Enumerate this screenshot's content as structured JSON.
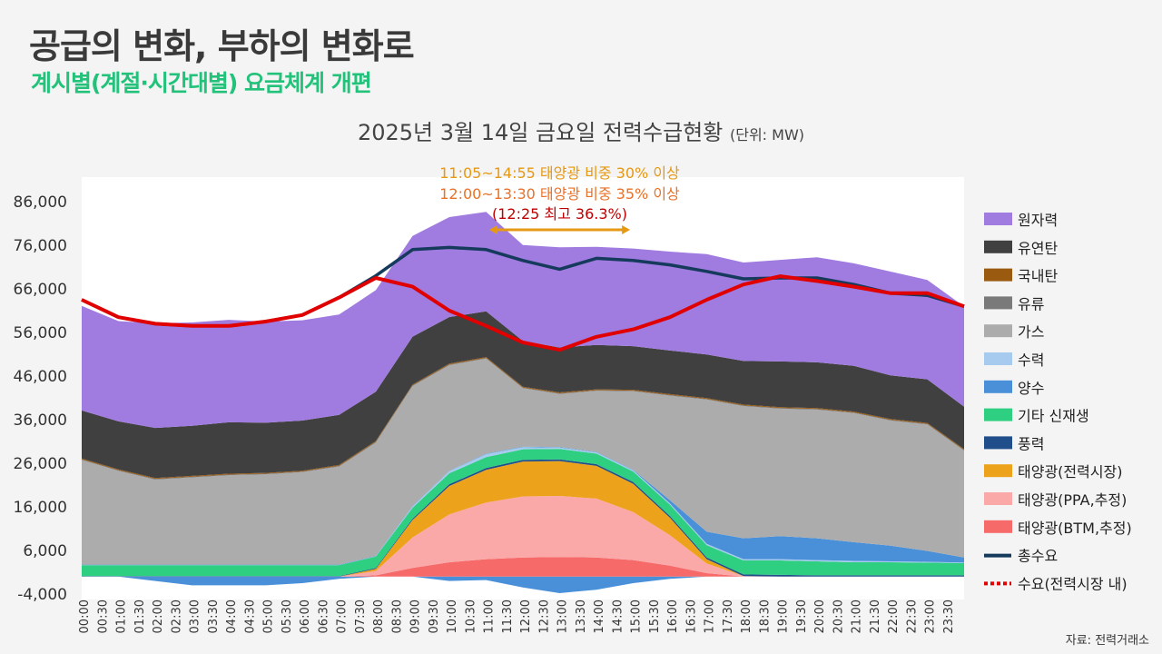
{
  "header": {
    "title": "공급의 변화, 부하의 변화로",
    "subtitle": "계시별(계절·시간대별) 요금체계 개편",
    "chart_title": "2025년 3월 14일 금요일 전력수급현황",
    "chart_unit": "(단위: MW)",
    "source": "자료: 전력거래소"
  },
  "annotations": {
    "line1": "11:05~14:55  태양광 비중 30% 이상",
    "line2": "12:00~13:30  태양광 비중 35% 이상",
    "line3": "(12:25 최고 36.3%)",
    "arrow_from": "11:05",
    "arrow_to": "14:55"
  },
  "colors": {
    "nuclear": "#a07be0",
    "coal": "#404040",
    "anthracite": "#9a5a10",
    "oil": "#7a7a7a",
    "lng": "#acacac",
    "hydro": "#a6cbee",
    "pumped": "#4a90d9",
    "other_renew": "#2ecf80",
    "wind": "#1f4e8a",
    "solar_market": "#eda21c",
    "solar_ppa": "#fba8a8",
    "solar_btm": "#f66a6a",
    "total_demand": "#153a5c",
    "market_demand": "#e00000",
    "annotation1": "#e69914",
    "annotation2": "#e8722a",
    "annotation3": "#c00000"
  },
  "chart_data": {
    "type": "area",
    "title": "2025년 3월 14일 금요일 전력수급현황",
    "unit": "MW",
    "ylim": [
      -4000,
      86000
    ],
    "yticks": [
      86000,
      76000,
      66000,
      56000,
      46000,
      36000,
      26000,
      16000,
      6000,
      -4000
    ],
    "ytick_labels": [
      "86,000",
      "76,000",
      "66,000",
      "56,000",
      "46,000",
      "36,000",
      "26,000",
      "16,000",
      "6,000",
      "-4,000"
    ],
    "xticks": [
      "00:00",
      "00:30",
      "01:00",
      "01:30",
      "02:00",
      "02:30",
      "03:00",
      "03:30",
      "04:00",
      "04:30",
      "05:00",
      "05:30",
      "06:00",
      "06:30",
      "07:00",
      "07:30",
      "08:00",
      "08:30",
      "09:00",
      "09:30",
      "10:00",
      "10:30",
      "11:00",
      "11:30",
      "12:00",
      "12:30",
      "13:00",
      "13:30",
      "14:00",
      "14:30",
      "15:00",
      "15:30",
      "16:00",
      "16:30",
      "17:00",
      "17:30",
      "18:00",
      "18:30",
      "19:00",
      "19:30",
      "20:00",
      "20:30",
      "21:00",
      "21:30",
      "22:00",
      "22:30",
      "23:00",
      "23:30"
    ],
    "x_hours": [
      0,
      1,
      2,
      3,
      4,
      5,
      6,
      7,
      8,
      9,
      10,
      11,
      12,
      13,
      14,
      15,
      16,
      17,
      18,
      19,
      20,
      21,
      22,
      23,
      24
    ],
    "stacked_series": [
      {
        "key": "pumped",
        "name": "양수",
        "values": [
          0,
          0,
          -1000,
          -2000,
          -2000,
          -2000,
          -1500,
          -500,
          0,
          0,
          -1000,
          -800,
          -2500,
          -3800,
          -3000,
          -1500,
          -500,
          0,
          0,
          0,
          0,
          0,
          0,
          0,
          0
        ]
      },
      {
        "key": "solar_btm",
        "name": "태양광(BTM,추정)",
        "values": [
          0,
          0,
          0,
          0,
          0,
          0,
          0,
          0,
          300,
          2000,
          3300,
          4000,
          4400,
          4500,
          4400,
          3800,
          2500,
          800,
          0,
          0,
          0,
          0,
          0,
          0,
          0
        ]
      },
      {
        "key": "solar_ppa",
        "name": "태양광(PPA,추정)",
        "values": [
          0,
          0,
          0,
          0,
          0,
          0,
          0,
          0,
          1000,
          7000,
          11000,
          13000,
          14000,
          14000,
          13500,
          11000,
          7000,
          2200,
          100,
          0,
          0,
          0,
          0,
          0,
          0
        ]
      },
      {
        "key": "solar_market",
        "name": "태양광(전력시장)",
        "values": [
          0,
          0,
          0,
          0,
          0,
          0,
          0,
          0,
          500,
          4000,
          6500,
          7500,
          8000,
          8000,
          7500,
          6500,
          4000,
          1000,
          0,
          0,
          0,
          0,
          0,
          0,
          0
        ]
      },
      {
        "key": "wind",
        "name": "풍력",
        "values": [
          100,
          100,
          100,
          100,
          100,
          100,
          100,
          100,
          200,
          300,
          400,
          400,
          400,
          400,
          400,
          400,
          400,
          400,
          400,
          400,
          300,
          300,
          300,
          300,
          300
        ]
      },
      {
        "key": "other_renew",
        "name": "기타 신재생",
        "values": [
          2500,
          2500,
          2500,
          2500,
          2500,
          2500,
          2500,
          2500,
          2600,
          2500,
          2500,
          2500,
          2400,
          2400,
          2400,
          2400,
          2600,
          2800,
          3200,
          3300,
          3200,
          3000,
          3000,
          2900,
          2800
        ]
      },
      {
        "key": "hydro",
        "name": "수력",
        "values": [
          50,
          50,
          50,
          50,
          50,
          50,
          50,
          50,
          50,
          300,
          500,
          700,
          500,
          300,
          300,
          300,
          300,
          300,
          300,
          300,
          300,
          300,
          200,
          200,
          100
        ]
      },
      {
        "key": "pumped_gen",
        "name": "양수",
        "values": [
          100,
          100,
          100,
          100,
          100,
          100,
          100,
          100,
          100,
          100,
          100,
          100,
          100,
          100,
          100,
          100,
          700,
          2800,
          4800,
          5300,
          5000,
          4300,
          3600,
          2500,
          1200
        ]
      },
      {
        "key": "lng",
        "name": "가스",
        "values": [
          24000,
          21500,
          19500,
          20000,
          20500,
          20700,
          21200,
          22500,
          26000,
          27500,
          24200,
          21800,
          13400,
          12200,
          14000,
          18000,
          24000,
          30300,
          30300,
          29200,
          29500,
          29600,
          28700,
          29000,
          24500
        ]
      },
      {
        "key": "oil",
        "name": "유류",
        "values": [
          150,
          150,
          150,
          150,
          150,
          150,
          150,
          150,
          150,
          150,
          150,
          150,
          150,
          150,
          150,
          150,
          150,
          150,
          150,
          150,
          150,
          150,
          150,
          150,
          150
        ]
      },
      {
        "key": "anthracite",
        "name": "국내탄",
        "values": [
          200,
          200,
          200,
          200,
          200,
          200,
          200,
          200,
          200,
          200,
          200,
          200,
          200,
          200,
          200,
          200,
          200,
          200,
          200,
          200,
          200,
          200,
          200,
          200,
          200
        ]
      },
      {
        "key": "coal",
        "name": "유연탄",
        "values": [
          11000,
          11000,
          11500,
          11500,
          11800,
          11500,
          11500,
          11500,
          11300,
          11000,
          10700,
          10500,
          10500,
          10300,
          10200,
          10000,
          10000,
          10000,
          10000,
          10500,
          10500,
          10500,
          10000,
          10000,
          9700
        ]
      },
      {
        "key": "nuclear",
        "name": "원자력",
        "values": [
          24000,
          23000,
          24000,
          23700,
          23500,
          23200,
          23000,
          23000,
          23300,
          23100,
          22900,
          22800,
          22000,
          23000,
          22500,
          22400,
          22700,
          23000,
          22600,
          23300,
          24100,
          23500,
          23800,
          22800,
          23000
        ]
      }
    ],
    "lines": [
      {
        "key": "total_demand",
        "name": "총수요",
        "values": [
          63500,
          59500,
          58000,
          57500,
          57500,
          58500,
          60000,
          64000,
          69000,
          75000,
          75500,
          75000,
          72500,
          70500,
          73000,
          72500,
          71500,
          70000,
          68300,
          68500,
          68500,
          67000,
          65000,
          64500,
          62000
        ]
      },
      {
        "key": "market_demand",
        "name": "수요(전력시장 내)",
        "values": [
          63500,
          59500,
          58000,
          57500,
          57500,
          58500,
          60000,
          64000,
          68500,
          66500,
          61000,
          57500,
          53700,
          52000,
          55000,
          56700,
          59500,
          63500,
          67000,
          68900,
          67800,
          66500,
          65000,
          65000,
          62000
        ]
      }
    ],
    "legend": [
      "원자력",
      "유연탄",
      "국내탄",
      "유류",
      "가스",
      "수력",
      "양수",
      "기타 신재생",
      "풍력",
      "태양광(전력시장)",
      "태양광(PPA,추정)",
      "태양광(BTM,추정)",
      "총수요",
      "수요(전력시장 내)"
    ],
    "legend_keys": [
      "nuclear",
      "coal",
      "anthracite",
      "oil",
      "lng",
      "hydro",
      "pumped",
      "other_renew",
      "wind",
      "solar_market",
      "solar_ppa",
      "solar_btm",
      "total_demand",
      "market_demand"
    ],
    "legend_position": "right",
    "grid": false
  }
}
